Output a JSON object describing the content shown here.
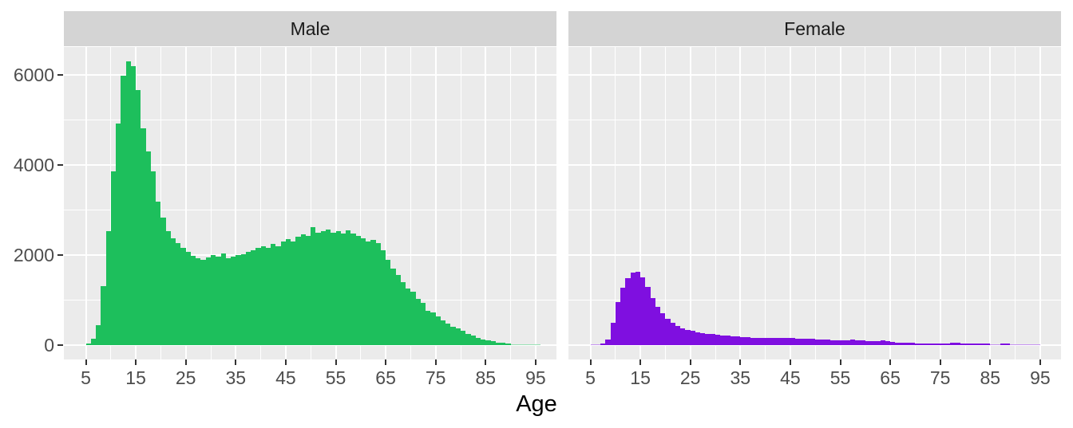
{
  "figure": {
    "kind": "faceted histogram (ggplot2 style)",
    "background": "#FFFFFF"
  },
  "colors": {
    "panel_bg": "#EBEBEB",
    "strip_bg": "#D4D4D4",
    "grid": "#FFFFFF",
    "axis_text": "#4D4D4D",
    "strip_text": "#1A1A1A",
    "axis_title": "#000000",
    "tick_mark": "#333333",
    "male_fill": "#1DBF5C",
    "female_fill": "#7F0FE0"
  },
  "chart_data": {
    "type": "bar",
    "subtype": "histogram",
    "title": "",
    "xlabel": "Age",
    "ylabel": "",
    "legend_position": "none",
    "grid": "white major and minor gridlines on gray panels",
    "binwidth": 1,
    "first_bin_age": 5,
    "x_major_ticks": [
      5,
      15,
      25,
      35,
      45,
      55,
      65,
      75,
      85,
      95
    ],
    "x_minor_ticks": [
      10,
      20,
      30,
      40,
      50,
      60,
      70,
      80,
      90
    ],
    "y_major_ticks": [
      0,
      2000,
      4000,
      6000
    ],
    "y_minor_ticks": [
      1000,
      3000,
      5000
    ],
    "xlim": [
      0.6,
      99.2
    ],
    "ylim": [
      -315,
      6615
    ],
    "facets": [
      {
        "name": "Male",
        "fill": "#1DBF5C",
        "bin_start_age": 5,
        "counts": [
          30,
          150,
          450,
          1300,
          2530,
          3860,
          4920,
          5980,
          6300,
          6180,
          5650,
          4800,
          4300,
          3850,
          3180,
          2830,
          2530,
          2360,
          2265,
          2150,
          2060,
          1980,
          1930,
          1900,
          1950,
          2000,
          1970,
          2040,
          1930,
          1960,
          1990,
          2010,
          2060,
          2110,
          2160,
          2200,
          2150,
          2250,
          2200,
          2300,
          2350,
          2300,
          2400,
          2450,
          2420,
          2620,
          2500,
          2520,
          2560,
          2500,
          2520,
          2480,
          2550,
          2480,
          2420,
          2360,
          2300,
          2330,
          2260,
          2100,
          1900,
          1700,
          1550,
          1400,
          1260,
          1180,
          1020,
          940,
          760,
          720,
          640,
          550,
          480,
          400,
          370,
          310,
          250,
          205,
          160,
          130,
          105,
          85,
          60,
          45,
          30,
          20,
          16,
          13,
          10,
          8,
          6
        ]
      },
      {
        "name": "Female",
        "fill": "#7F0FE0",
        "bin_start_age": 5,
        "counts": [
          18,
          22,
          35,
          130,
          500,
          950,
          1280,
          1480,
          1600,
          1620,
          1500,
          1290,
          1050,
          850,
          700,
          580,
          500,
          430,
          380,
          340,
          310,
          290,
          270,
          255,
          240,
          228,
          218,
          210,
          200,
          190,
          180,
          172,
          168,
          165,
          162,
          158,
          155,
          158,
          152,
          165,
          160,
          150,
          142,
          145,
          138,
          130,
          125,
          120,
          115,
          112,
          110,
          108,
          118,
          108,
          100,
          95,
          92,
          90,
          102,
          90,
          70,
          62,
          55,
          50,
          45,
          42,
          40,
          38,
          37,
          36,
          35,
          38,
          55,
          50,
          38,
          36,
          35,
          34,
          33,
          32,
          18,
          15,
          35,
          30,
          12,
          10,
          14,
          8,
          6,
          12
        ]
      }
    ]
  }
}
